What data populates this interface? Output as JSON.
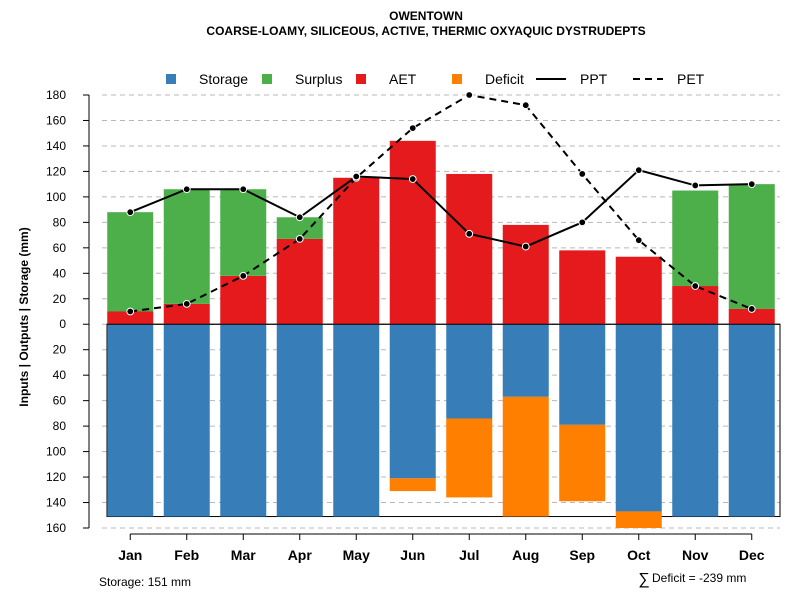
{
  "chart_data": {
    "type": "bar",
    "title": "OWENTOWN",
    "subtitle": "COARSE-LOAMY, SILICEOUS, ACTIVE, THERMIC OXYAQUIC DYSTRUDEPTS",
    "ylabel": "Inputs | Outputs | Storage     (mm)",
    "ylim": [
      -160,
      180
    ],
    "y_ticks": [
      180,
      160,
      140,
      120,
      100,
      80,
      60,
      40,
      20,
      0,
      -20,
      -40,
      -60,
      -80,
      -100,
      -120,
      -140,
      -160
    ],
    "y_tick_labels": [
      "180",
      "160",
      "140",
      "120",
      "100",
      "80",
      "60",
      "40",
      "20",
      "0",
      "20",
      "40",
      "60",
      "80",
      "100",
      "120",
      "140",
      "160"
    ],
    "categories": [
      "Jan",
      "Feb",
      "Mar",
      "Apr",
      "May",
      "Jun",
      "Jul",
      "Aug",
      "Sep",
      "Oct",
      "Nov",
      "Dec"
    ],
    "legend_position": "top",
    "legend": [
      {
        "name": "Storage",
        "kind": "box",
        "color": "#377EB8"
      },
      {
        "name": "Surplus",
        "kind": "box",
        "color": "#4DAF4A"
      },
      {
        "name": "AET",
        "kind": "box",
        "color": "#E41A1C"
      },
      {
        "name": "Deficit",
        "kind": "box",
        "color": "#FF7F00"
      },
      {
        "name": "PPT",
        "kind": "line",
        "color": "#000000"
      },
      {
        "name": "PET",
        "kind": "dash",
        "color": "#000000"
      }
    ],
    "series": [
      {
        "name": "AET",
        "color": "#E41A1C",
        "values": [
          10,
          16,
          38,
          67,
          115,
          144,
          118,
          78,
          58,
          53,
          30,
          12
        ]
      },
      {
        "name": "Surplus",
        "color": "#4DAF4A",
        "values": [
          78,
          90,
          68,
          17,
          0,
          0,
          0,
          0,
          0,
          0,
          75,
          98
        ]
      },
      {
        "name": "Storage",
        "color": "#377EB8",
        "values": [
          151,
          151,
          151,
          151,
          151,
          121,
          74,
          57,
          79,
          147,
          151,
          151
        ]
      },
      {
        "name": "Deficit",
        "color": "#FF7F00",
        "values": [
          0,
          0,
          0,
          0,
          0,
          10,
          62,
          94,
          60,
          13,
          0,
          0
        ]
      },
      {
        "name": "PPT",
        "color": "#000000",
        "values": [
          88,
          106,
          106,
          84,
          116,
          114,
          71,
          61,
          80,
          121,
          109,
          110
        ]
      },
      {
        "name": "PET",
        "color": "#000000",
        "values": [
          10,
          16,
          38,
          67,
          115,
          154,
          180,
          172,
          118,
          66,
          30,
          12
        ]
      }
    ],
    "storage_capacity": 151,
    "storage_label": "Storage: 151 mm",
    "deficit_symbol": "∑",
    "deficit_label": "Deficit = -239 mm"
  }
}
